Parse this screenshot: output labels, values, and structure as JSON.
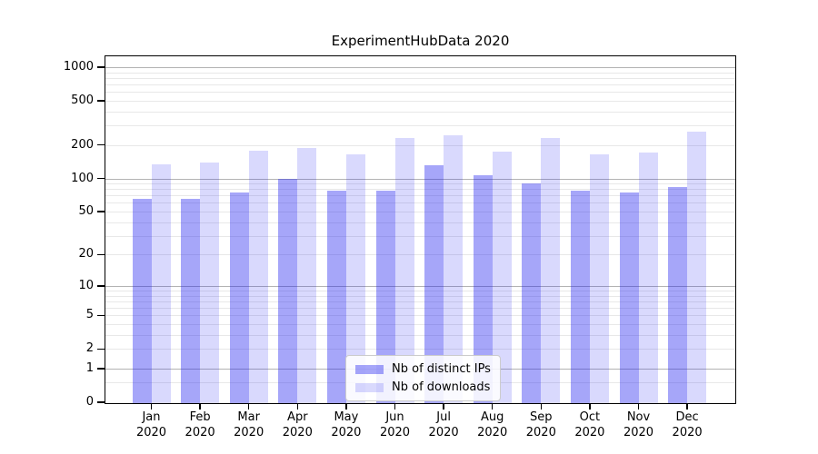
{
  "title": "ExperimentHubData 2020",
  "chart_data": {
    "type": "bar",
    "title": "ExperimentHubData 2020",
    "categories": [
      "Jan",
      "Feb",
      "Mar",
      "Apr",
      "May",
      "Jun",
      "Jul",
      "Aug",
      "Sep",
      "Oct",
      "Nov",
      "Dec"
    ],
    "year": "2020",
    "series": [
      {
        "name": "Nb of distinct IPs",
        "values": [
          65,
          65,
          74,
          100,
          78,
          78,
          131,
          107,
          91,
          78,
          74,
          83
        ],
        "fill": "rgba(20,20,240,0.38)"
      },
      {
        "name": "Nb of downloads",
        "values": [
          135,
          140,
          178,
          188,
          165,
          230,
          243,
          175,
          230,
          164,
          171,
          262
        ],
        "fill": "rgba(20,20,240,0.16)"
      }
    ],
    "xlabel": "",
    "ylabel": "",
    "y_axis": {
      "scale": "log1p",
      "ylim": [
        0,
        1250
      ],
      "labeled_ticks": [
        0,
        1,
        2,
        5,
        10,
        20,
        50,
        100,
        200,
        500,
        1000
      ],
      "major_gridlines": [
        1,
        10,
        100,
        1000
      ],
      "minor_gridlines": [
        0.5,
        2,
        3,
        4,
        5,
        6,
        7,
        8,
        9,
        20,
        30,
        40,
        50,
        60,
        70,
        80,
        90,
        200,
        300,
        400,
        500,
        600,
        700,
        800,
        900
      ]
    },
    "grid": "on",
    "legend": {
      "position": "lower center",
      "entries": [
        "Nb of distinct IPs",
        "Nb of downloads"
      ]
    },
    "colors": {
      "bar_dark": "rgba(20,20,240,0.38)",
      "bar_dark_on_white": "#a6a6f9",
      "bar_light": "rgba(20,20,240,0.16)",
      "bar_light_on_white": "#d9d9fd",
      "major_grid": "#b3b3b3",
      "minor_grid": "#e8e8e8",
      "spine": "#000000",
      "background": "#ffffff"
    }
  }
}
